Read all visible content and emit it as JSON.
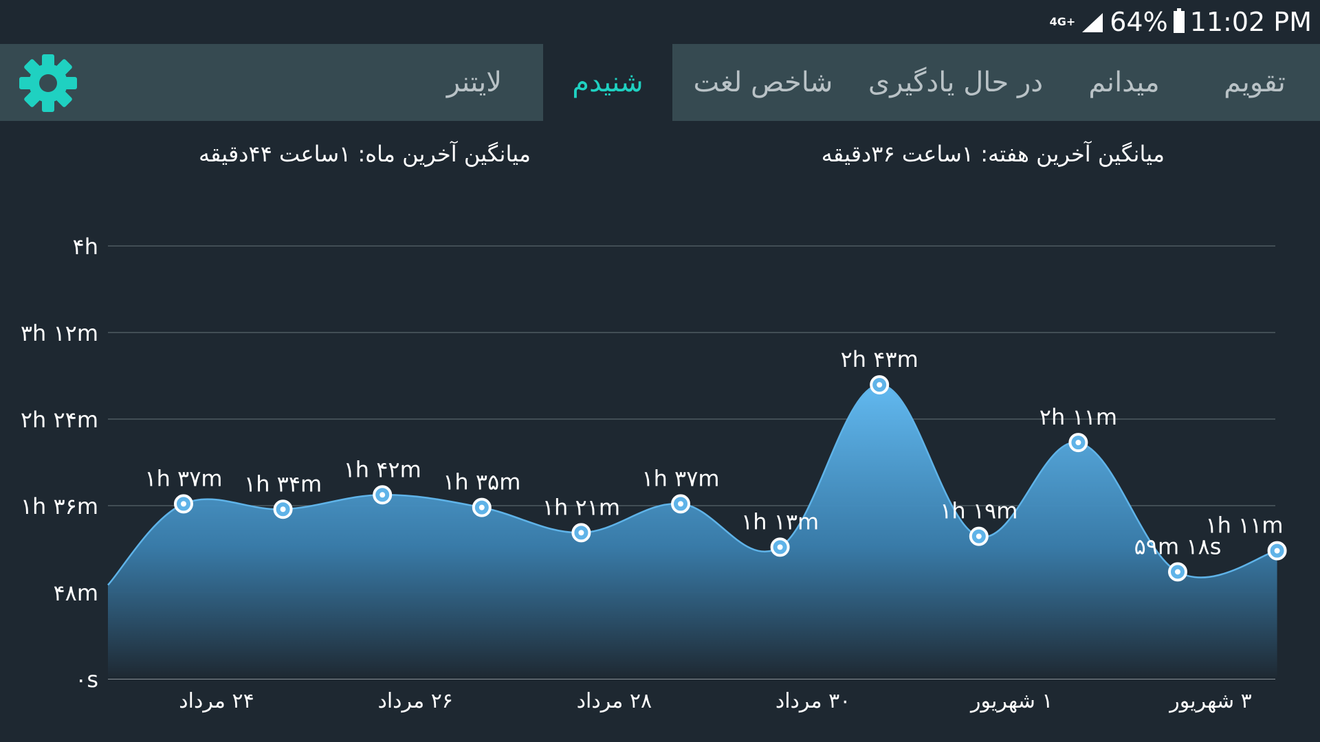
{
  "status": {
    "network": "4G+",
    "battery": "64%",
    "time": "11:02 PM"
  },
  "tabs": [
    {
      "label": "تقویم",
      "active": false
    },
    {
      "label": "میدانم",
      "active": false
    },
    {
      "label": "در حال یادگیری",
      "active": false
    },
    {
      "label": "شاخص لغت",
      "active": false
    },
    {
      "label": "شنیدم",
      "active": true
    },
    {
      "label": "لایتنر",
      "active": false
    }
  ],
  "averages": {
    "week": "میانگین آخرین هفته: ۱ساعت  ۳۶دقیقه",
    "month": "میانگین آخرین ماه: ۱ساعت  ۴۴دقیقه"
  },
  "colors": {
    "background": "#1e2831",
    "tabbar": "#364a51",
    "accent": "#1fd1c1",
    "line": "#5fb3e8"
  },
  "chart_data": {
    "type": "area",
    "y_unit": "minutes",
    "ylim": [
      0,
      240
    ],
    "y_ticks": [
      {
        "value": 0,
        "label": "۰s"
      },
      {
        "value": 48,
        "label": "۴۸m"
      },
      {
        "value": 96,
        "label": "۱h ۳۶m"
      },
      {
        "value": 144,
        "label": "۲h ۲۴m"
      },
      {
        "value": 192,
        "label": "۳h ۱۲m"
      },
      {
        "value": 240,
        "label": "۴h"
      }
    ],
    "x_ticks": [
      {
        "day": 1,
        "label": "۲۴ مرداد"
      },
      {
        "day": 3,
        "label": "۲۶ مرداد"
      },
      {
        "day": 5,
        "label": "۲۸ مرداد"
      },
      {
        "day": 7,
        "label": "۳۰ مرداد"
      },
      {
        "day": 9,
        "label": "۱ شهریور"
      },
      {
        "day": 11,
        "label": "۳ شهریور"
      }
    ],
    "points": [
      {
        "day": 1,
        "value": 97,
        "label": "۱h ۳۷m"
      },
      {
        "day": 2,
        "value": 94,
        "label": "۱h ۳۴m"
      },
      {
        "day": 3,
        "value": 102,
        "label": "۱h ۴۲m"
      },
      {
        "day": 4,
        "value": 95,
        "label": "۱h ۳۵m"
      },
      {
        "day": 5,
        "value": 81,
        "label": "۱h ۲۱m"
      },
      {
        "day": 6,
        "value": 97,
        "label": "۱h ۳۷m"
      },
      {
        "day": 7,
        "value": 73,
        "label": "۱h ۱۳m"
      },
      {
        "day": 8,
        "value": 163,
        "label": "۲h ۴۳m"
      },
      {
        "day": 9,
        "value": 79,
        "label": "۱h ۱۹m"
      },
      {
        "day": 10,
        "value": 131,
        "label": "۲h ۱۱m"
      },
      {
        "day": 11,
        "value": 59.3,
        "label": "۵۹m ۱۸s"
      },
      {
        "day": 12,
        "value": 71,
        "label": "۱h ۱۱m"
      }
    ],
    "partial_start_value": 52,
    "grid": true
  }
}
